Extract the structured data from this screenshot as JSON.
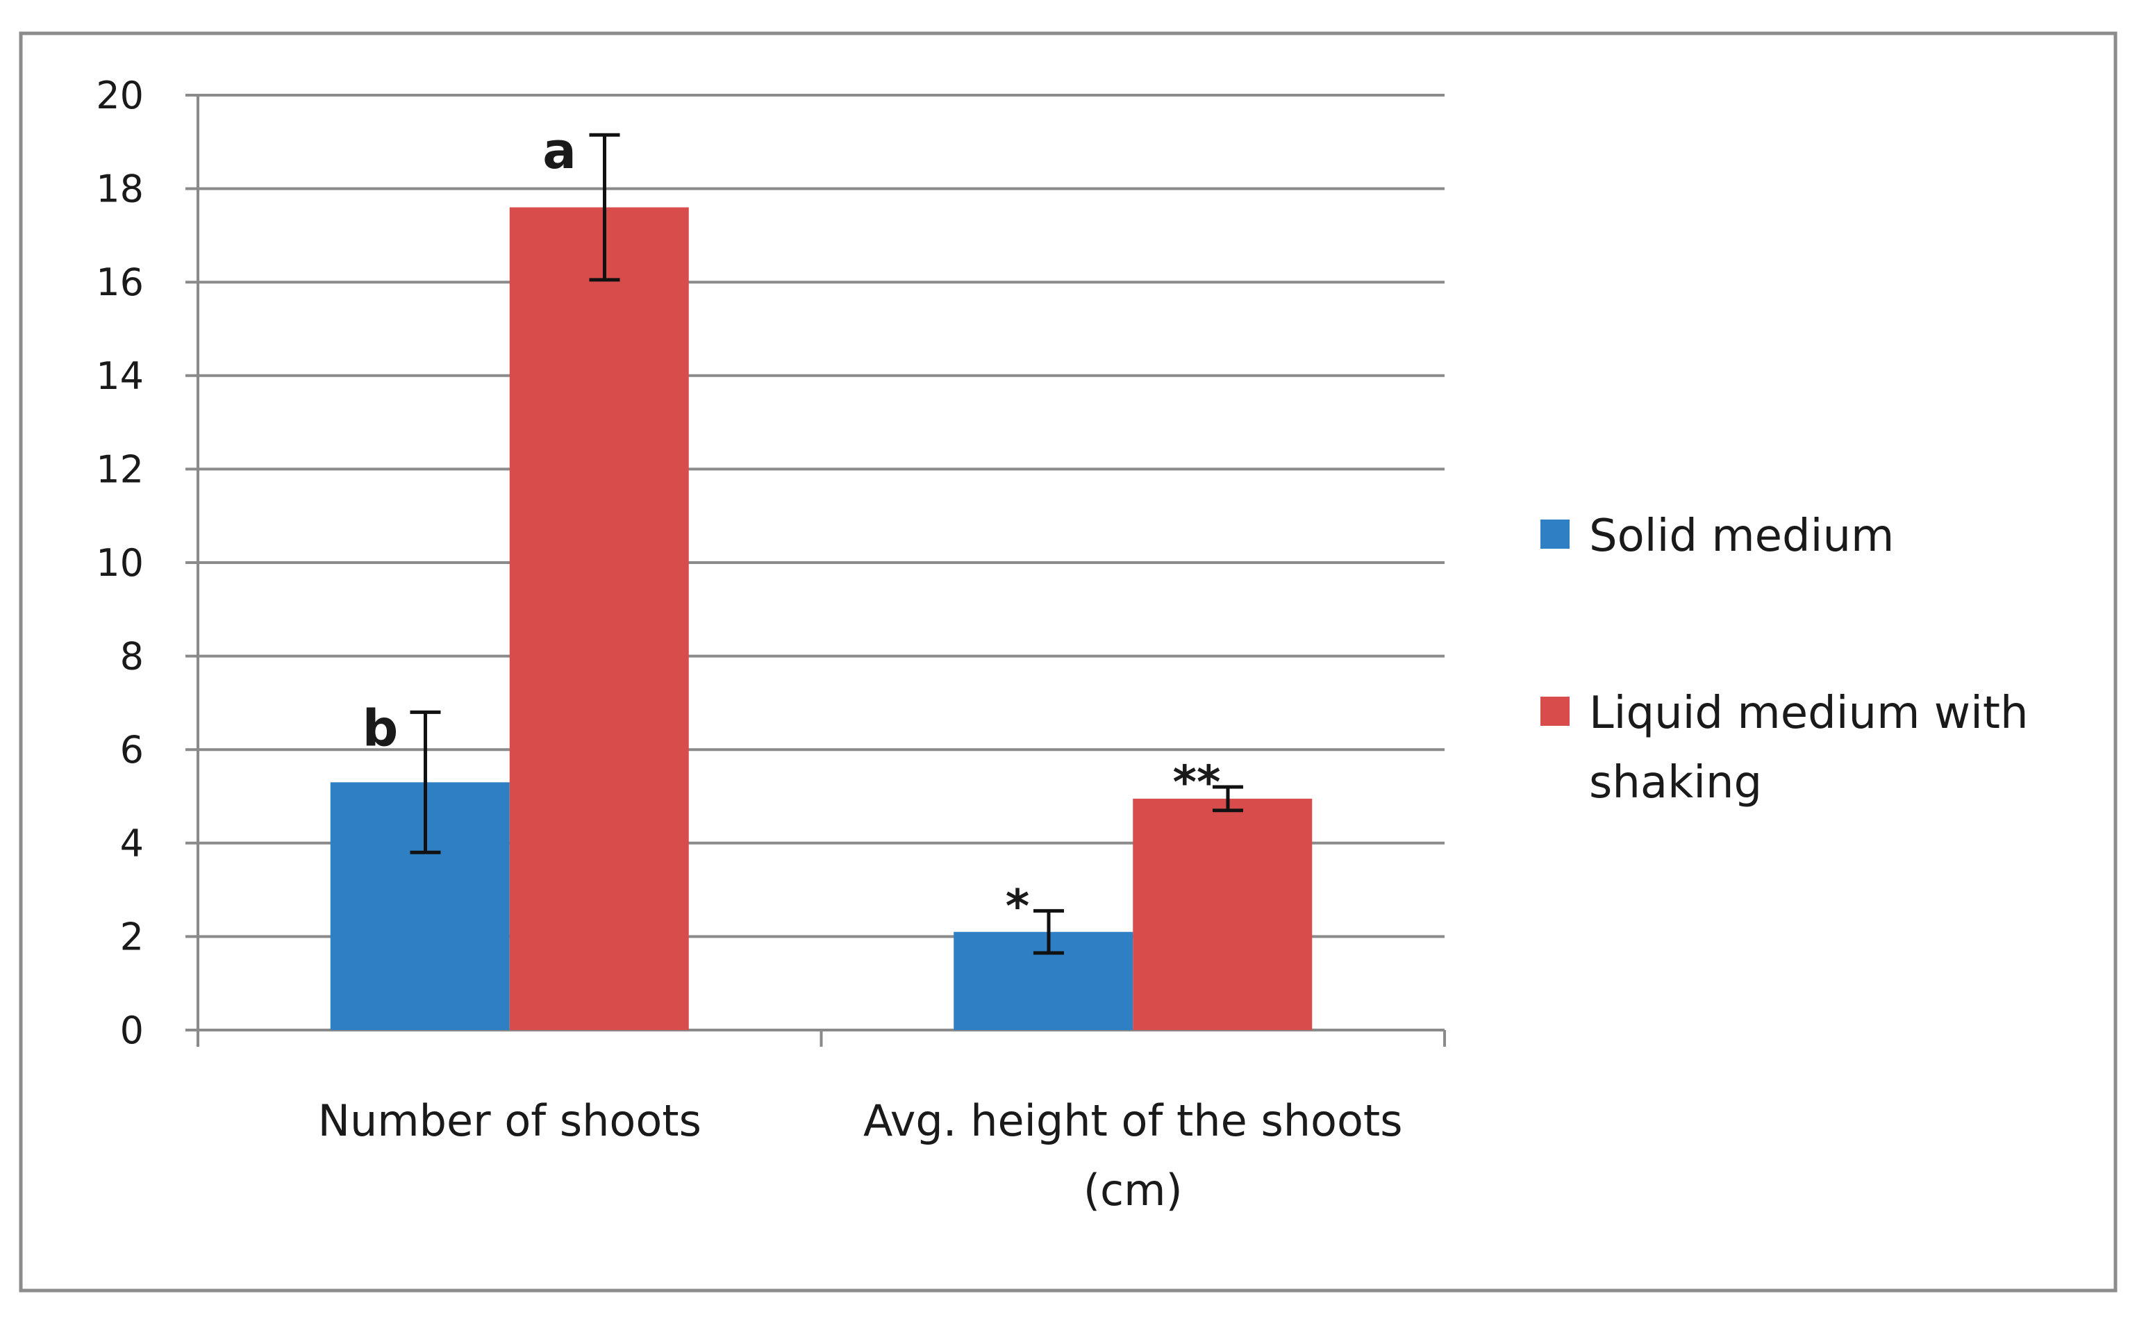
{
  "chart_data": {
    "type": "bar",
    "title": "",
    "xlabel": "",
    "ylabel": "",
    "ylim": [
      0,
      20
    ],
    "ytick_step": 2,
    "grid": true,
    "legend_position": "right",
    "categories": [
      [
        "Number of shoots"
      ],
      [
        "Avg. height of the shoots",
        "(cm)"
      ]
    ],
    "series": [
      {
        "name": "Solid medium",
        "color": "#2e7fc3",
        "values": [
          5.3,
          2.1
        ],
        "errors": [
          1.5,
          0.45
        ],
        "annotations": [
          "b",
          "*"
        ]
      },
      {
        "name": "Liquid medium with shaking",
        "legend_lines": [
          "Liquid medium with",
          "shaking"
        ],
        "color": "#d84c4c",
        "values": [
          17.6,
          4.95
        ],
        "errors": [
          1.55,
          0.25
        ],
        "annotations": [
          "a",
          "**"
        ]
      }
    ]
  }
}
